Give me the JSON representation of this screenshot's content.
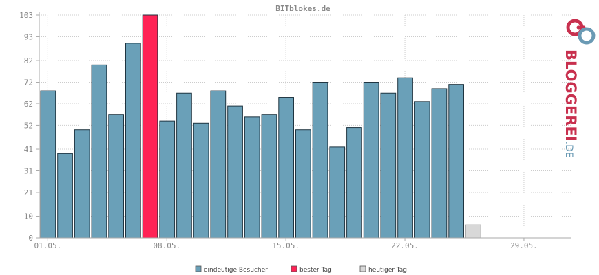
{
  "chart_data": {
    "type": "bar",
    "title": "BITblokes.de",
    "y_ticks": [
      0,
      10,
      21,
      31,
      41,
      52,
      62,
      72,
      82,
      93,
      103
    ],
    "ylim": [
      0,
      103
    ],
    "x_tick_labels": [
      {
        "label": "01.05.",
        "slot": 0
      },
      {
        "label": "08.05.",
        "slot": 7
      },
      {
        "label": "15.05.",
        "slot": 14
      },
      {
        "label": "22.05.",
        "slot": 21
      },
      {
        "label": "29.05.",
        "slot": 28
      }
    ],
    "slots": 31,
    "grid": true,
    "legend_position": "bottom",
    "series": [
      {
        "name": "eindeutige Besucher",
        "color": "#6aa0b8",
        "values": [
          68,
          39,
          50,
          80,
          57,
          90,
          null,
          54,
          67,
          53,
          68,
          61,
          56,
          57,
          65,
          50,
          72,
          42,
          51,
          72,
          67,
          74,
          63,
          69,
          71
        ]
      },
      {
        "name": "bester Tag",
        "color": "#ff2255",
        "values": [
          null,
          null,
          null,
          null,
          null,
          null,
          103
        ]
      },
      {
        "name": "heutiger Tag",
        "color": "#d8d8d8",
        "values": [
          null,
          null,
          null,
          null,
          null,
          null,
          null,
          null,
          null,
          null,
          null,
          null,
          null,
          null,
          null,
          null,
          null,
          null,
          null,
          null,
          null,
          null,
          null,
          null,
          null,
          6
        ]
      }
    ]
  },
  "logo": {
    "text": "BLOGGEREI",
    "suffix": ".DE",
    "color_main": "#c8304e",
    "color_suffix": "#6a9ab4"
  }
}
